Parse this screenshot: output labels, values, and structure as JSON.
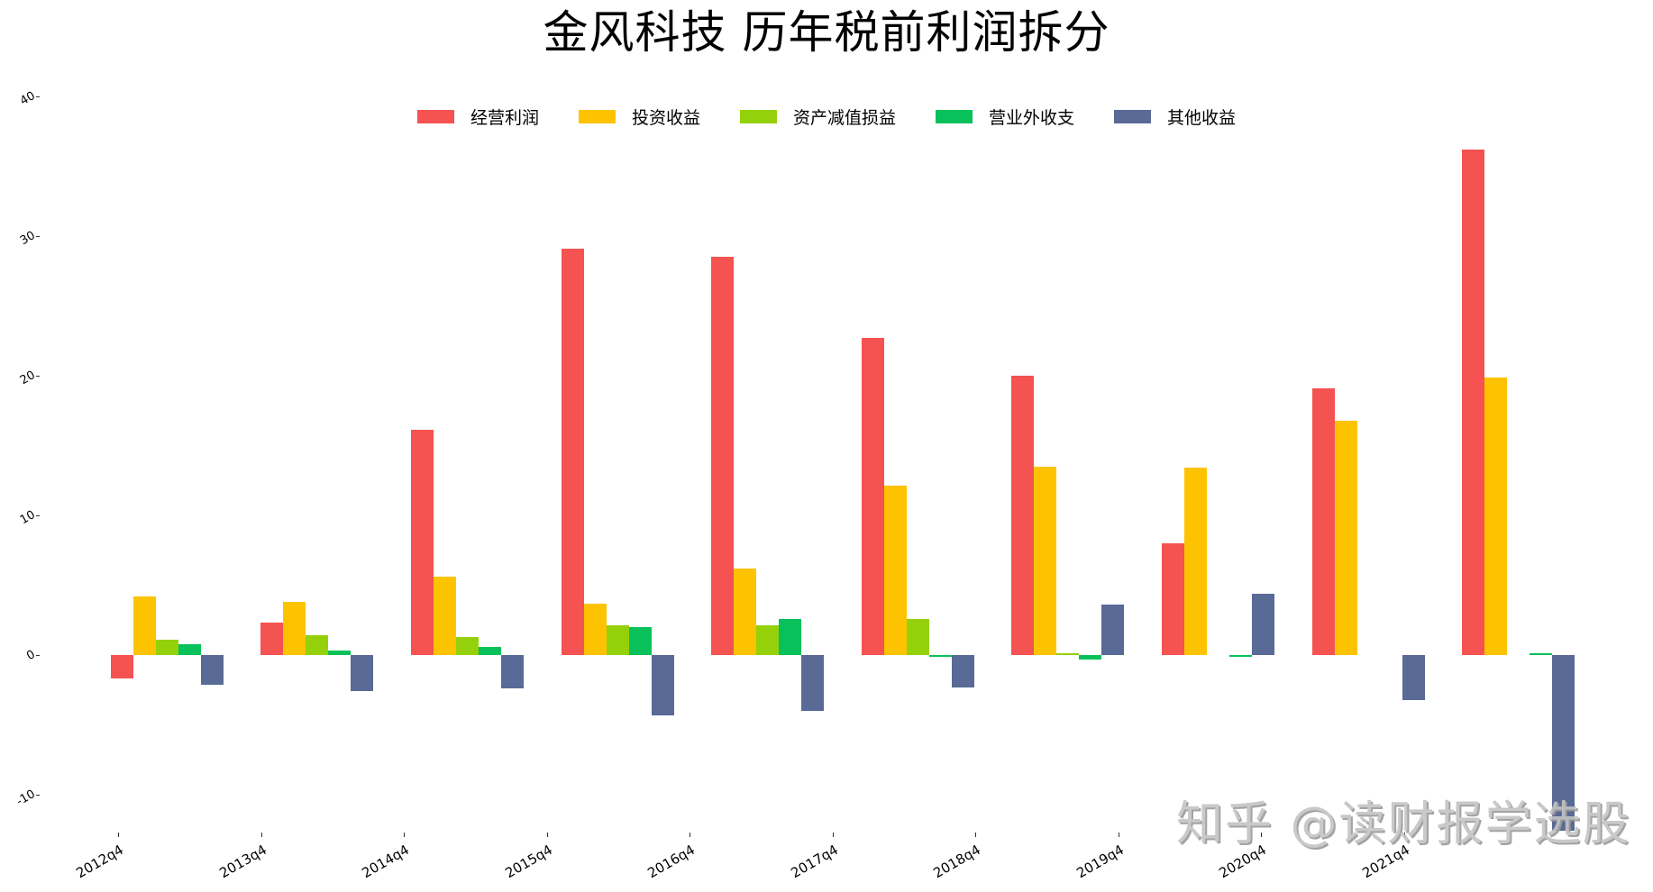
{
  "chart_data": {
    "type": "bar",
    "title": "金风科技 历年税前利润拆分",
    "xlabel": "",
    "ylabel": "",
    "ylim": [
      -12.6,
      40
    ],
    "yticks": [
      -10,
      0,
      10,
      20,
      30,
      40
    ],
    "grid": false,
    "legend_position": "top-center",
    "categories": [
      "2012q4",
      "2013q4",
      "2014q4",
      "2015q4",
      "2016q4",
      "2017q4",
      "2018q4",
      "2019q4",
      "2020q4",
      "2021q4"
    ],
    "series": [
      {
        "name": "经营利润",
        "color": "#f55252",
        "values": [
          -1.7,
          2.3,
          16.1,
          29.1,
          28.5,
          22.7,
          20.0,
          8.0,
          19.1,
          36.2
        ]
      },
      {
        "name": "投资收益",
        "color": "#fdc300",
        "values": [
          4.2,
          3.8,
          5.6,
          3.7,
          6.2,
          12.1,
          13.5,
          13.4,
          16.8,
          19.9
        ]
      },
      {
        "name": "资产减值损益",
        "color": "#94d10a",
        "values": [
          1.1,
          1.4,
          1.3,
          2.1,
          2.1,
          2.6,
          0.1,
          0.0,
          0.0,
          0.0
        ]
      },
      {
        "name": "营业外收支",
        "color": "#08c15a",
        "values": [
          0.8,
          0.3,
          0.6,
          2.0,
          2.6,
          -0.1,
          -0.3,
          -0.05,
          0.0,
          0.1
        ]
      },
      {
        "name": "其他收益",
        "color": "#586a95",
        "values": [
          -2.1,
          -2.6,
          -2.4,
          -4.3,
          -4.0,
          -2.3,
          3.6,
          4.4,
          -3.2,
          -12.6
        ]
      }
    ]
  },
  "watermark": "知乎 @读财报学选股"
}
